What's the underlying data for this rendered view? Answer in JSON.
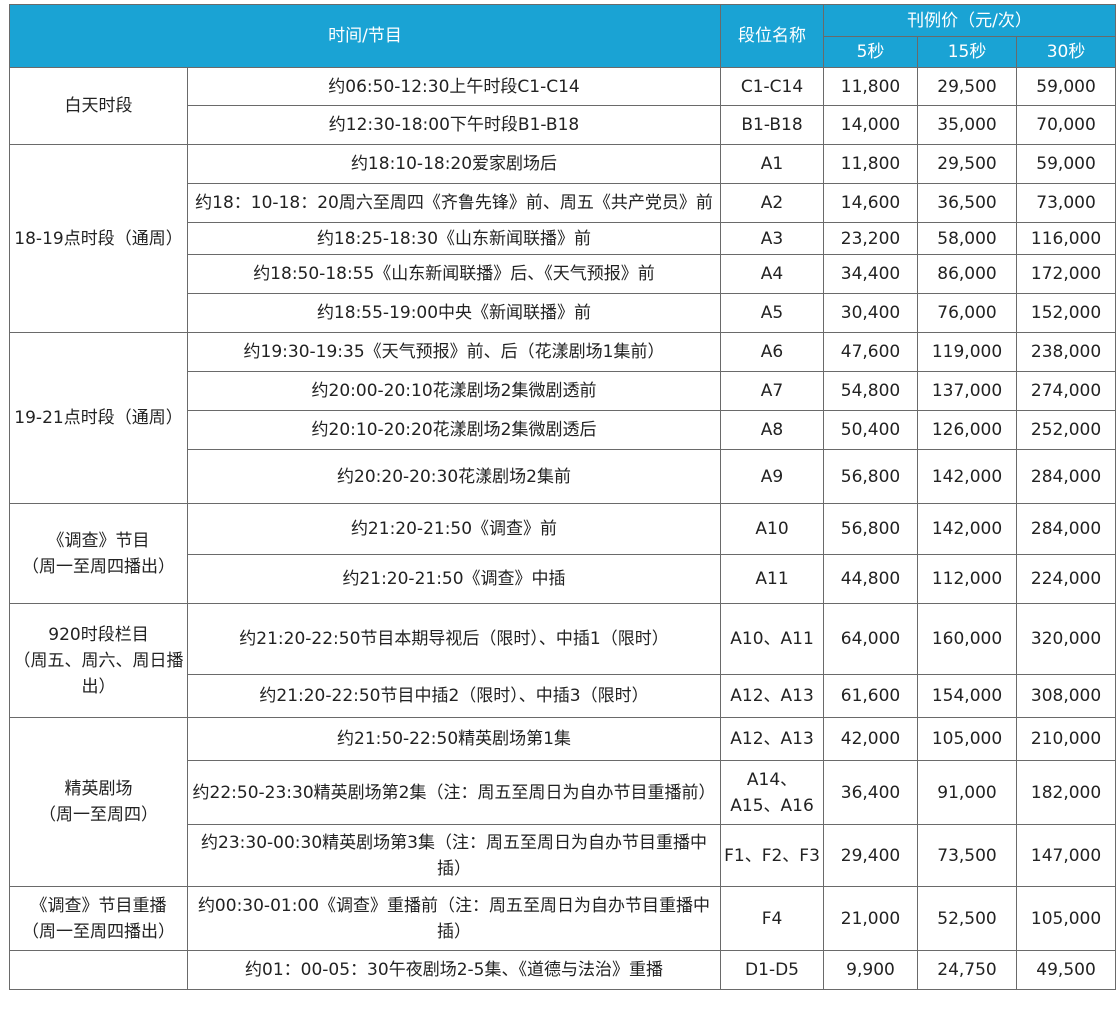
{
  "header": {
    "time_program": "时间/节目",
    "slot_name": "段位名称",
    "price": "刊例价（元/次）",
    "d5": "5秒",
    "d15": "15秒",
    "d30": "30秒"
  },
  "groups": [
    {
      "label_lines": [
        "白天时段"
      ],
      "rows": [
        {
          "program": "约06:50-12:30上午时段C1-C14",
          "slot": "C1-C14",
          "p5": "11,800",
          "p15": "29,500",
          "p30": "59,000"
        },
        {
          "program": "约12:30-18:00下午时段B1-B18",
          "slot": "B1-B18",
          "p5": "14,000",
          "p15": "35,000",
          "p30": "70,000"
        }
      ]
    },
    {
      "label_lines": [
        "18-19点时段（通周）"
      ],
      "rows": [
        {
          "program": "约18:10-18:20爱家剧场后",
          "slot": "A1",
          "p5": "11,800",
          "p15": "29,500",
          "p30": "59,000"
        },
        {
          "program": "约18：10-18：20周六至周四《齐鲁先锋》前、周五《共产党员》前",
          "slot": "A2",
          "p5": "14,600",
          "p15": "36,500",
          "p30": "73,000"
        },
        {
          "program": "约18:25-18:30《山东新闻联播》前",
          "slot": "A3",
          "p5": "23,200",
          "p15": "58,000",
          "p30": "116,000"
        },
        {
          "program": "约18:50-18:55《山东新闻联播》后、《天气预报》前",
          "slot": "A4",
          "p5": "34,400",
          "p15": "86,000",
          "p30": "172,000"
        },
        {
          "program": "约18:55-19:00中央《新闻联播》前",
          "slot": "A5",
          "p5": "30,400",
          "p15": "76,000",
          "p30": "152,000"
        }
      ]
    },
    {
      "label_lines": [
        "19-21点时段（通周）"
      ],
      "rows": [
        {
          "program": "约19:30-19:35《天气预报》前、后（花漾剧场1集前）",
          "slot": "A6",
          "p5": "47,600",
          "p15": "119,000",
          "p30": "238,000"
        },
        {
          "program": "约20:00-20:10花漾剧场2集微剧透前",
          "slot": "A7",
          "p5": "54,800",
          "p15": "137,000",
          "p30": "274,000"
        },
        {
          "program": "约20:10-20:20花漾剧场2集微剧透后",
          "slot": "A8",
          "p5": "50,400",
          "p15": "126,000",
          "p30": "252,000"
        },
        {
          "program": "约20:20-20:30花漾剧场2集前",
          "slot": "A9",
          "p5": "56,800",
          "p15": "142,000",
          "p30": "284,000"
        }
      ]
    },
    {
      "label_lines": [
        "《调查》节目",
        "（周一至周四播出）"
      ],
      "rows": [
        {
          "program": "约21:20-21:50《调查》前",
          "slot": "A10",
          "p5": "56,800",
          "p15": "142,000",
          "p30": "284,000"
        },
        {
          "program": "约21:20-21:50《调查》中插",
          "slot": "A11",
          "p5": "44,800",
          "p15": "112,000",
          "p30": "224,000"
        }
      ]
    },
    {
      "label_lines": [
        "920时段栏目",
        "（周五、周六、周日播",
        "出）"
      ],
      "rows": [
        {
          "program": "约21:20-22:50节目本期导视后（限时）、中插1（限时）",
          "slot": "A10、A11",
          "p5": "64,000",
          "p15": "160,000",
          "p30": "320,000"
        },
        {
          "program": "约21:20-22:50节目中插2（限时）、中插3（限时）",
          "slot": "A12、A13",
          "p5": "61,600",
          "p15": "154,000",
          "p30": "308,000"
        }
      ]
    },
    {
      "label_lines": [
        "精英剧场",
        "（周一至周四）"
      ],
      "rows": [
        {
          "program": "约21:50-22:50精英剧场第1集",
          "slot": "A12、A13",
          "p5": "42,000",
          "p15": "105,000",
          "p30": "210,000"
        },
        {
          "program": "约22:50-23:30精英剧场第2集（注：周五至周日为自办节目重播前）",
          "slot": "A14、A15、A16",
          "p5": "36,400",
          "p15": "91,000",
          "p30": "182,000"
        },
        {
          "program": "约23:30-00:30精英剧场第3集（注：周五至周日为自办节目重播中插）",
          "slot": "F1、F2、F3",
          "p5": "29,400",
          "p15": "73,500",
          "p30": "147,000"
        }
      ]
    },
    {
      "label_lines": [
        "《调查》节目重播",
        "（周一至周四播出）"
      ],
      "rows": [
        {
          "program": "约00:30-01:00《调查》重播前（注：周五至周日为自办节目重播中插）",
          "slot": "F4",
          "p5": "21,000",
          "p15": "52,500",
          "p30": "105,000"
        }
      ]
    },
    {
      "label_lines": [
        ""
      ],
      "rows": [
        {
          "program": "约01：00-05：30午夜剧场2-5集、《道德与法治》重播",
          "slot": "D1-D5",
          "p5": "9,900",
          "p15": "24,750",
          "p30": "49,500"
        }
      ]
    }
  ]
}
